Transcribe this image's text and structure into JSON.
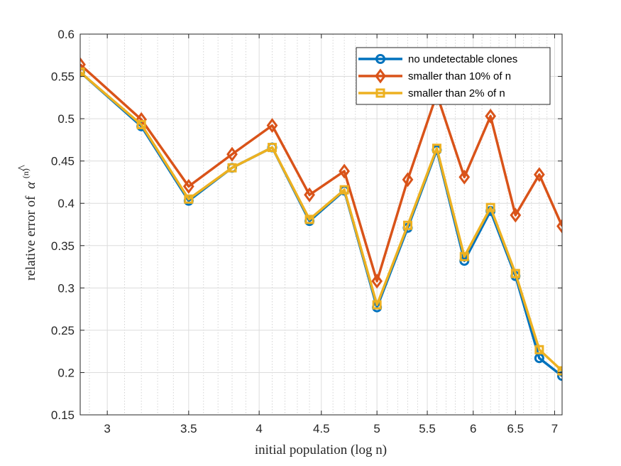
{
  "chart_data": {
    "type": "line",
    "title": "",
    "xlabel": "initial population (log n)",
    "ylabel": "relative error of",
    "ylabel_math_base": "α",
    "ylabel_math_hat": "^",
    "ylabel_math_sup": "(n)",
    "xscale": "log",
    "xlim": [
      2.85,
      7.1
    ],
    "ylim": [
      0.15,
      0.6
    ],
    "xticks": [
      3,
      3.5,
      4,
      4.5,
      5,
      5.5,
      6,
      6.5,
      7
    ],
    "xtick_labels": [
      "3",
      "3.5",
      "4",
      "4.5",
      "5",
      "5.5",
      "6",
      "6.5",
      "7"
    ],
    "yticks": [
      0.15,
      0.2,
      0.25,
      0.3,
      0.35,
      0.4,
      0.45,
      0.5,
      0.55,
      0.6
    ],
    "ytick_labels": [
      "0.15",
      "0.2",
      "0.25",
      "0.3",
      "0.35",
      "0.4",
      "0.45",
      "0.5",
      "0.55",
      "0.6"
    ],
    "grid": true,
    "legend_position": "top-right",
    "x": [
      2.85,
      3.2,
      3.5,
      3.8,
      4.1,
      4.4,
      4.7,
      5.0,
      5.3,
      5.6,
      5.9,
      6.2,
      6.5,
      6.8,
      7.1
    ],
    "series": [
      {
        "name": "no undetectable clones",
        "color": "#0072BD",
        "marker": "circle",
        "values": [
          0.555,
          0.491,
          0.403,
          0.442,
          0.466,
          0.379,
          0.415,
          0.277,
          0.371,
          0.463,
          0.332,
          0.391,
          0.314,
          0.217,
          0.196
        ]
      },
      {
        "name": "smaller than 10% of n",
        "color": "#D95319",
        "marker": "diamond",
        "values": [
          0.564,
          0.499,
          0.42,
          0.458,
          0.492,
          0.41,
          0.438,
          0.308,
          0.428,
          0.529,
          0.431,
          0.503,
          0.386,
          0.434,
          0.373
        ]
      },
      {
        "name": "smaller than 2% of n",
        "color": "#EDB120",
        "marker": "square",
        "values": [
          0.555,
          0.493,
          0.405,
          0.442,
          0.466,
          0.381,
          0.416,
          0.28,
          0.374,
          0.465,
          0.337,
          0.395,
          0.317,
          0.227,
          0.202
        ]
      }
    ]
  }
}
